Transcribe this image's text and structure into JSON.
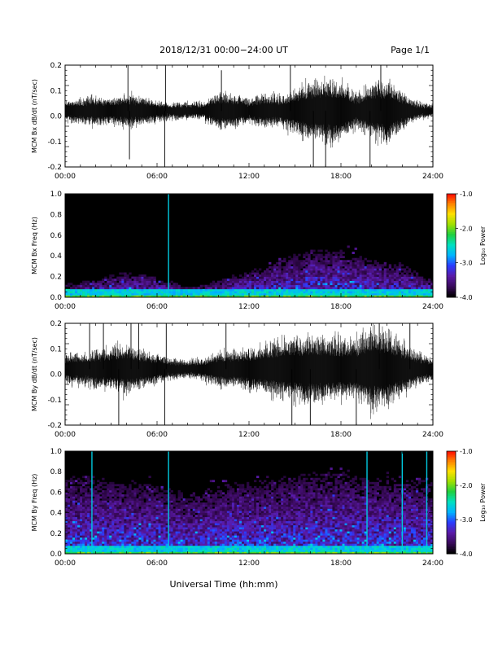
{
  "header": {
    "title": "2018/12/31   00:00−24:00 UT",
    "page": "Page 1/1"
  },
  "footer": {
    "xlabel": "Universal Time (hh:mm)"
  },
  "colors": {
    "trace": "#000000",
    "background": "#ffffff",
    "colormap": [
      "#000000",
      "#3a0a5c",
      "#5a1aa8",
      "#2a3cff",
      "#00b4ff",
      "#00e0c0",
      "#20d040",
      "#a0e000",
      "#ffe000",
      "#ff8000",
      "#ff0000"
    ]
  },
  "chart_data": [
    {
      "type": "line",
      "ylabel": "MCM Bx dB/dt (nT/sec)",
      "xlim": [
        "00:00",
        "24:00"
      ],
      "ylim": [
        -0.2,
        0.2
      ],
      "x_ticks": [
        "00:00",
        "06:00",
        "12:00",
        "18:00",
        "24:00"
      ],
      "y_ticks": [
        "-0.2",
        "-0.1",
        "0.0",
        "0.1",
        "0.2"
      ],
      "y_tick_values": [
        -0.2,
        -0.1,
        0.0,
        0.1,
        0.2
      ],
      "envelope_hours": [
        0,
        1,
        2,
        3,
        4,
        5,
        6,
        7,
        8,
        9,
        10,
        11,
        12,
        13,
        14,
        15,
        16,
        17,
        18,
        19,
        20,
        21,
        22,
        23,
        24
      ],
      "envelope_amplitude": [
        0.05,
        0.06,
        0.07,
        0.06,
        0.08,
        0.07,
        0.05,
        0.04,
        0.04,
        0.04,
        0.09,
        0.08,
        0.06,
        0.08,
        0.07,
        0.1,
        0.14,
        0.16,
        0.15,
        0.08,
        0.13,
        0.15,
        0.09,
        0.04,
        0.03
      ],
      "spikes": [
        {
          "hour": 4.1,
          "y": 0.2
        },
        {
          "hour": 4.2,
          "y": -0.17
        },
        {
          "hour": 6.5,
          "y": -0.2
        },
        {
          "hour": 6.55,
          "y": 0.2
        },
        {
          "hour": 10.2,
          "y": 0.18
        },
        {
          "hour": 14.7,
          "y": 0.2
        },
        {
          "hour": 16.2,
          "y": -0.2
        },
        {
          "hour": 17.0,
          "y": -0.2
        },
        {
          "hour": 19.9,
          "y": -0.2
        },
        {
          "hour": 20.6,
          "y": 0.2
        }
      ]
    },
    {
      "type": "heatmap",
      "ylabel": "MCM Bx Freq (Hz)",
      "xlim": [
        "00:00",
        "24:00"
      ],
      "ylim": [
        0.0,
        1.0
      ],
      "x_ticks": [
        "00:00",
        "06:00",
        "12:00",
        "18:00",
        "24:00"
      ],
      "y_ticks": [
        "0.0",
        "0.2",
        "0.4",
        "0.6",
        "0.8",
        "1.0"
      ],
      "y_tick_values": [
        0.0,
        0.2,
        0.4,
        0.6,
        0.8,
        1.0
      ],
      "colorbar": {
        "label": "Log₁₀ Power",
        "ticks": [
          "-1.0",
          "-2.0",
          "-3.0",
          "-4.0"
        ],
        "tick_values": [
          -1.0,
          -2.0,
          -3.0,
          -4.0
        ],
        "range": [
          -4.0,
          -1.0
        ]
      },
      "activity_hours": [
        0,
        2,
        4,
        6,
        8,
        10,
        12,
        14,
        16,
        18,
        20,
        22,
        24
      ],
      "activity_top_hz": [
        0.15,
        0.2,
        0.3,
        0.25,
        0.12,
        0.2,
        0.3,
        0.45,
        0.55,
        0.55,
        0.45,
        0.4,
        0.2
      ],
      "spike_hours": [
        6.75
      ]
    },
    {
      "type": "line",
      "ylabel": "MCM By dB/dt (nT/sec)",
      "xlim": [
        "00:00",
        "24:00"
      ],
      "ylim": [
        -0.2,
        0.2
      ],
      "x_ticks": [
        "00:00",
        "06:00",
        "12:00",
        "18:00",
        "24:00"
      ],
      "y_ticks": [
        "-0.2",
        "-0.1",
        "0.0",
        "0.1",
        "0.2"
      ],
      "y_tick_values": [
        -0.2,
        -0.1,
        0.0,
        0.1,
        0.2
      ],
      "envelope_hours": [
        0,
        1,
        2,
        3,
        4,
        5,
        6,
        7,
        8,
        9,
        10,
        11,
        12,
        13,
        14,
        15,
        16,
        17,
        18,
        19,
        20,
        21,
        22,
        23,
        24
      ],
      "envelope_amplitude": [
        0.07,
        0.08,
        0.09,
        0.1,
        0.12,
        0.09,
        0.07,
        0.05,
        0.04,
        0.05,
        0.08,
        0.09,
        0.1,
        0.12,
        0.14,
        0.15,
        0.16,
        0.16,
        0.14,
        0.15,
        0.2,
        0.18,
        0.13,
        0.08,
        0.05
      ],
      "spikes": [
        {
          "hour": 1.6,
          "y": 0.2
        },
        {
          "hour": 2.5,
          "y": 0.2
        },
        {
          "hour": 3.5,
          "y": -0.2
        },
        {
          "hour": 4.3,
          "y": 0.2
        },
        {
          "hour": 4.8,
          "y": 0.2
        },
        {
          "hour": 6.5,
          "y": -0.2
        },
        {
          "hour": 6.6,
          "y": 0.2
        },
        {
          "hour": 10.5,
          "y": 0.2
        },
        {
          "hour": 14.8,
          "y": -0.2
        },
        {
          "hour": 16.0,
          "y": -0.2
        },
        {
          "hour": 19.0,
          "y": -0.2
        },
        {
          "hour": 20.5,
          "y": 0.2
        },
        {
          "hour": 22.5,
          "y": 0.2
        }
      ]
    },
    {
      "type": "heatmap",
      "ylabel": "MCM By Freq (Hz)",
      "xlim": [
        "00:00",
        "24:00"
      ],
      "ylim": [
        0.0,
        1.0
      ],
      "x_ticks": [
        "00:00",
        "06:00",
        "12:00",
        "18:00",
        "24:00"
      ],
      "y_ticks": [
        "0.0",
        "0.2",
        "0.4",
        "0.6",
        "0.8",
        "1.0"
      ],
      "y_tick_values": [
        0.0,
        0.2,
        0.4,
        0.6,
        0.8,
        1.0
      ],
      "colorbar": {
        "label": "Log₁₀ Power",
        "ticks": [
          "-1.0",
          "-2.0",
          "-3.0",
          "-4.0"
        ],
        "tick_values": [
          -1.0,
          -2.0,
          -3.0,
          -4.0
        ],
        "range": [
          -4.0,
          -1.0
        ]
      },
      "activity_hours": [
        0,
        2,
        4,
        6,
        8,
        10,
        12,
        14,
        16,
        18,
        20,
        22,
        24
      ],
      "activity_top_hz": [
        0.9,
        0.9,
        0.85,
        0.8,
        0.7,
        0.8,
        0.85,
        0.9,
        0.95,
        0.95,
        0.9,
        0.9,
        0.85
      ],
      "spike_hours": [
        1.75,
        6.75,
        19.7,
        22.0,
        23.6
      ]
    }
  ]
}
